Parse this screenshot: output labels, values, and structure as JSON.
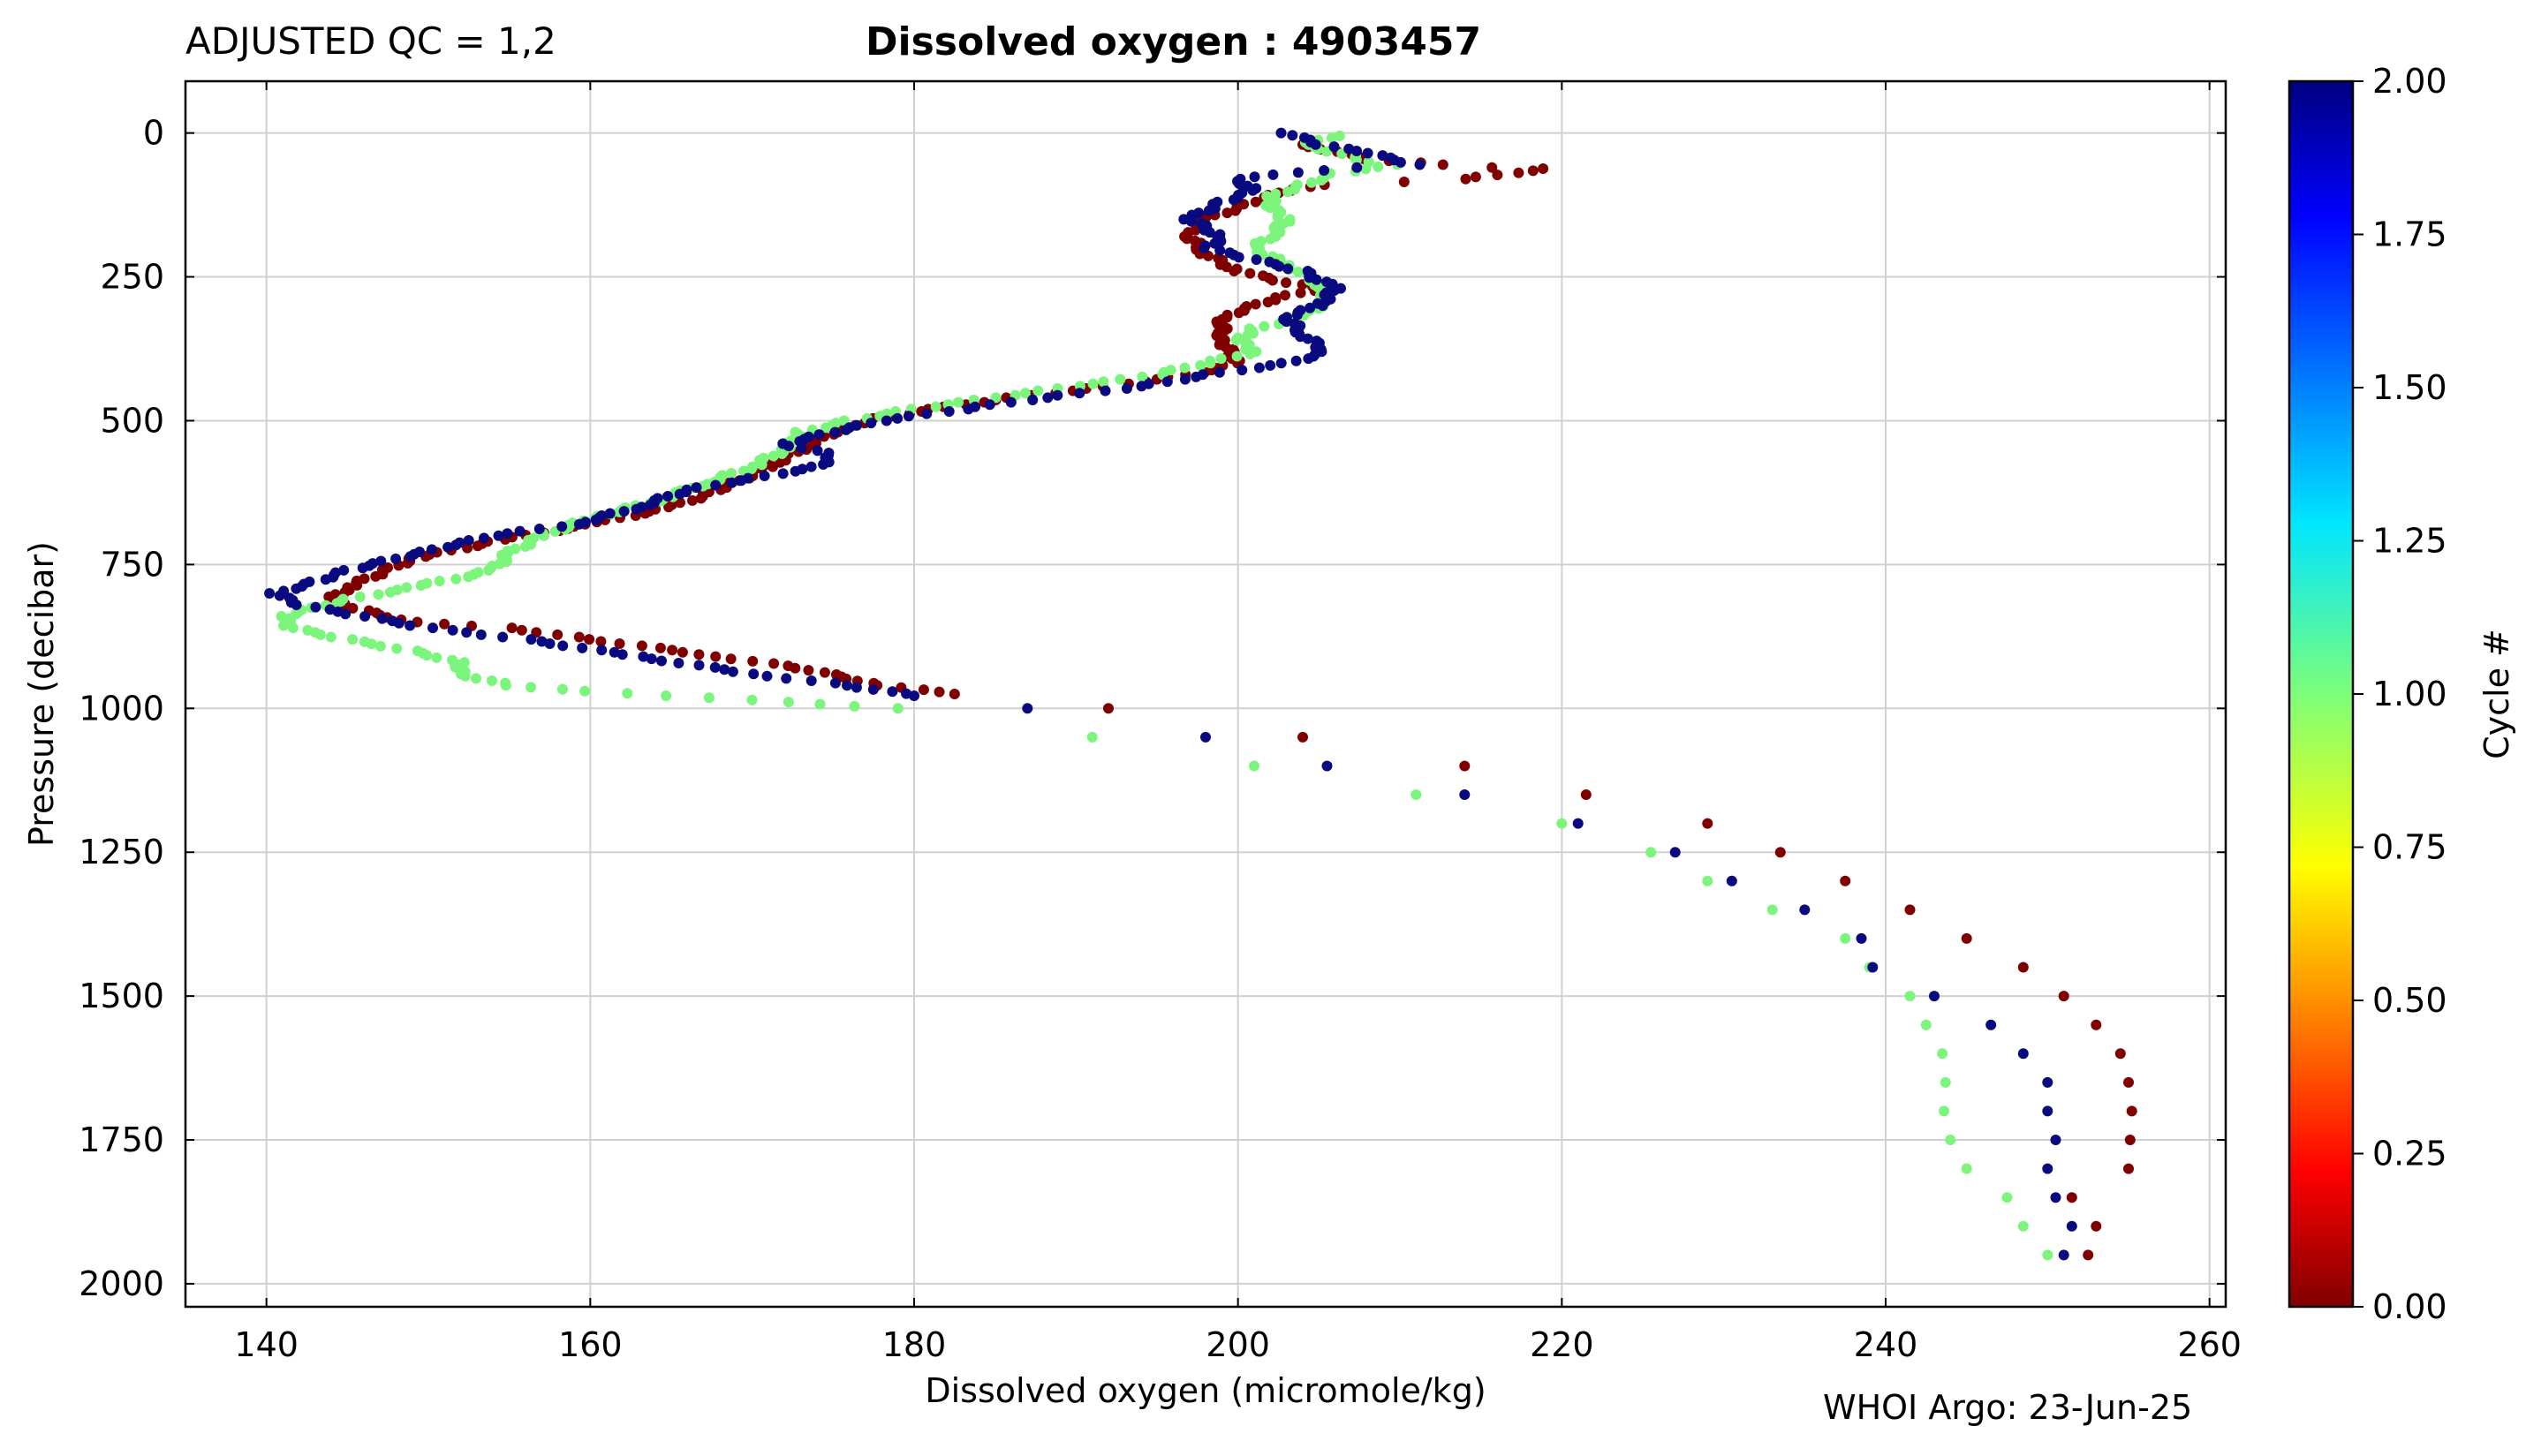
{
  "header": {
    "qc_label": "ADJUSTED QC = 1,2",
    "title": "Dissolved oxygen : 4903457"
  },
  "footer": {
    "credit": "WHOI Argo: 23-Jun-25"
  },
  "chart_data": {
    "type": "scatter",
    "title": "Dissolved oxygen : 4903457",
    "xlabel": "Dissolved oxygen  (micromole/kg)",
    "ylabel": "Pressure  (decibar)",
    "xlim": [
      135,
      261
    ],
    "ylim": [
      2040,
      -90
    ],
    "y_inverted": true,
    "grid": true,
    "x_ticks": [
      140,
      160,
      180,
      200,
      220,
      240,
      260
    ],
    "y_ticks": [
      0,
      250,
      500,
      750,
      1000,
      1250,
      1500,
      1750,
      2000
    ],
    "colorbar": {
      "label": "Cycle #",
      "range": [
        0,
        2
      ],
      "ticks": [
        "0.00",
        "0.25",
        "0.50",
        "0.75",
        "1.00",
        "1.25",
        "1.50",
        "1.75",
        "2.00"
      ],
      "colormap": "jet"
    },
    "series": [
      {
        "name": "Cycle 0",
        "cycle": 0,
        "color": "#800000",
        "profile": [
          [
            204,
            20
          ],
          [
            208,
            45
          ],
          [
            213,
            55
          ],
          [
            216,
            60
          ],
          [
            219,
            62
          ],
          [
            214,
            80
          ],
          [
            210,
            85
          ],
          [
            205,
            90
          ],
          [
            203,
            100
          ],
          [
            201,
            120
          ],
          [
            198,
            150
          ],
          [
            197,
            180
          ],
          [
            198,
            210
          ],
          [
            200,
            240
          ],
          [
            203,
            260
          ],
          [
            205,
            270
          ],
          [
            202,
            290
          ],
          [
            199,
            320
          ],
          [
            199,
            360
          ],
          [
            200,
            400
          ],
          [
            197,
            420
          ],
          [
            192,
            440
          ],
          [
            186,
            460
          ],
          [
            181,
            480
          ],
          [
            177,
            500
          ],
          [
            175,
            520
          ],
          [
            173,
            550
          ],
          [
            171,
            580
          ],
          [
            168,
            620
          ],
          [
            165,
            650
          ],
          [
            160,
            680
          ],
          [
            154,
            710
          ],
          [
            149,
            740
          ],
          [
            145,
            790
          ],
          [
            144,
            810
          ],
          [
            146,
            830
          ],
          [
            149,
            850
          ],
          [
            155,
            860
          ],
          [
            160,
            880
          ],
          [
            168,
            910
          ],
          [
            173,
            930
          ],
          [
            178,
            960
          ],
          [
            182.5,
            975
          ]
        ],
        "deep": [
          [
            192,
            1000
          ],
          [
            204,
            1050
          ],
          [
            214,
            1100
          ],
          [
            221.5,
            1150
          ],
          [
            229,
            1200
          ],
          [
            233.5,
            1250
          ],
          [
            237.5,
            1300
          ],
          [
            241.5,
            1350
          ],
          [
            245,
            1400
          ],
          [
            248.5,
            1450
          ],
          [
            251,
            1500
          ],
          [
            253,
            1550
          ],
          [
            254.5,
            1600
          ],
          [
            255,
            1650
          ],
          [
            255.2,
            1700
          ],
          [
            255.1,
            1750
          ],
          [
            255,
            1800
          ],
          [
            251.5,
            1850
          ],
          [
            253,
            1900
          ],
          [
            252.5,
            1950
          ]
        ]
      },
      {
        "name": "Cycle 1",
        "cycle": 1,
        "color": "#7CF57C",
        "profile": [
          [
            206,
            5
          ],
          [
            204,
            20
          ],
          [
            207,
            40
          ],
          [
            208,
            50
          ],
          [
            210,
            55
          ],
          [
            206,
            70
          ],
          [
            204,
            90
          ],
          [
            202,
            110
          ],
          [
            202,
            130
          ],
          [
            203,
            150
          ],
          [
            202,
            180
          ],
          [
            201,
            200
          ],
          [
            203,
            230
          ],
          [
            205,
            260
          ],
          [
            205.5,
            290
          ],
          [
            204,
            320
          ],
          [
            201,
            340
          ],
          [
            200,
            360
          ],
          [
            201,
            380
          ],
          [
            198,
            400
          ],
          [
            195,
            420
          ],
          [
            190,
            440
          ],
          [
            185,
            460
          ],
          [
            180,
            480
          ],
          [
            176,
            500
          ],
          [
            173,
            520
          ],
          [
            172,
            550
          ],
          [
            170,
            580
          ],
          [
            167,
            610
          ],
          [
            164,
            640
          ],
          [
            160,
            670
          ],
          [
            157,
            700
          ],
          [
            155,
            730
          ],
          [
            154,
            760
          ],
          [
            149,
            790
          ],
          [
            145,
            810
          ],
          [
            141,
            840
          ],
          [
            141.5,
            860
          ],
          [
            145,
            880
          ],
          [
            149,
            900
          ],
          [
            152,
            920
          ],
          [
            152,
            940
          ],
          [
            155,
            960
          ],
          [
            160,
            970
          ],
          [
            165,
            978
          ],
          [
            179,
            1000
          ]
        ],
        "deep": [
          [
            191,
            1050
          ],
          [
            201,
            1100
          ],
          [
            211,
            1150
          ],
          [
            220,
            1200
          ],
          [
            225.5,
            1250
          ],
          [
            229,
            1300
          ],
          [
            233,
            1350
          ],
          [
            237.5,
            1400
          ],
          [
            239,
            1450
          ],
          [
            241.5,
            1500
          ],
          [
            242.5,
            1550
          ],
          [
            243.5,
            1600
          ],
          [
            243.7,
            1650
          ],
          [
            243.6,
            1700
          ],
          [
            244,
            1750
          ],
          [
            245,
            1800
          ],
          [
            247.5,
            1850
          ],
          [
            248.5,
            1900
          ],
          [
            250,
            1950
          ]
        ]
      },
      {
        "name": "Cycle 2",
        "cycle": 2,
        "color": "#0A0A80",
        "profile": [
          [
            203,
            0
          ],
          [
            205,
            20
          ],
          [
            208,
            35
          ],
          [
            211,
            55
          ],
          [
            207,
            60
          ],
          [
            205,
            65
          ],
          [
            200,
            80
          ],
          [
            201,
            100
          ],
          [
            199,
            120
          ],
          [
            197,
            150
          ],
          [
            199,
            180
          ],
          [
            198,
            200
          ],
          [
            201,
            220
          ],
          [
            204,
            240
          ],
          [
            206,
            270
          ],
          [
            205,
            300
          ],
          [
            203,
            320
          ],
          [
            204,
            350
          ],
          [
            205.5,
            380
          ],
          [
            203,
            400
          ],
          [
            198,
            420
          ],
          [
            194,
            440
          ],
          [
            188,
            460
          ],
          [
            183,
            480
          ],
          [
            178,
            500
          ],
          [
            175,
            520
          ],
          [
            172,
            540
          ],
          [
            175,
            560
          ],
          [
            174,
            580
          ],
          [
            170,
            600
          ],
          [
            166,
            620
          ],
          [
            163,
            650
          ],
          [
            159,
            680
          ],
          [
            154,
            700
          ],
          [
            151,
            720
          ],
          [
            148,
            740
          ],
          [
            145,
            760
          ],
          [
            143,
            780
          ],
          [
            140.5,
            800
          ],
          [
            142,
            820
          ],
          [
            146,
            840
          ],
          [
            150,
            860
          ],
          [
            156,
            880
          ],
          [
            163,
            910
          ],
          [
            170,
            940
          ],
          [
            176,
            960
          ],
          [
            180,
            978
          ]
        ],
        "deep": [
          [
            187,
            1000
          ],
          [
            198,
            1050
          ],
          [
            205.5,
            1100
          ],
          [
            214,
            1150
          ],
          [
            221,
            1200
          ],
          [
            227,
            1250
          ],
          [
            230.5,
            1300
          ],
          [
            235,
            1350
          ],
          [
            238.5,
            1400
          ],
          [
            239.2,
            1450
          ],
          [
            243,
            1500
          ],
          [
            246.5,
            1550
          ],
          [
            248.5,
            1600
          ],
          [
            250,
            1650
          ],
          [
            250,
            1700
          ],
          [
            250.5,
            1750
          ],
          [
            250,
            1800
          ],
          [
            250.5,
            1850
          ],
          [
            251.5,
            1900
          ],
          [
            251,
            1950
          ]
        ]
      }
    ]
  }
}
